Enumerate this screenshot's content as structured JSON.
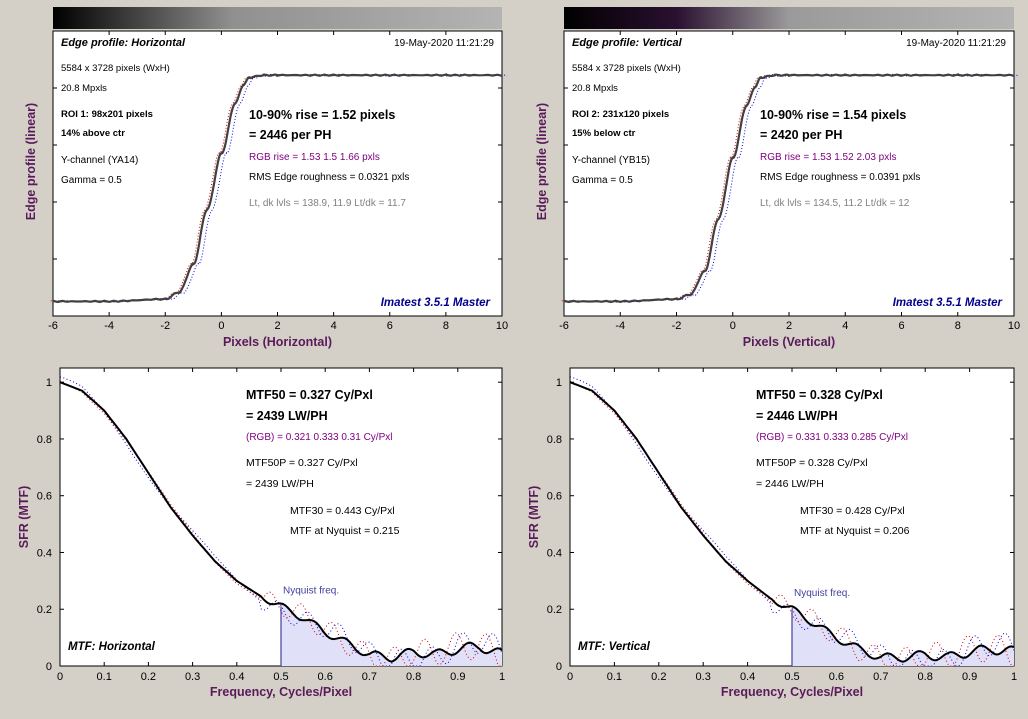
{
  "colors": {
    "background": "#d4d0c8",
    "axis_label": "#5a1a5a",
    "rgb_text": "#800080",
    "imatest": "#00008b",
    "nyquist": "#4040a0",
    "nyquist_fill": "#e0e0f8",
    "curve": "#000000",
    "edge_curve": "#404040",
    "red_dots": "#d00000",
    "blue_dots": "#0000e0"
  },
  "panels": [
    {
      "id": "edge-h",
      "heading": "Edge profile: Horizontal",
      "timestamp": "19-May-2020 11:21:29",
      "dims": "5584 x 3728 pixels (WxH)",
      "mpxls": "20.8 Mpxls",
      "roi": "ROI 1:  98x201 pixels",
      "roi_pos": "14% above ctr",
      "channel": "Y-channel  (YA14)",
      "gamma": "Gamma = 0.5",
      "rise": "10-90% rise = 1.52 pixels",
      "per_ph": "= 2446 per PH",
      "rgb_rise": "RGB rise = 1.53  1.5  1.66 pxls",
      "roughness": "RMS Edge roughness = 0.0321 pxls",
      "levels": "Lt, dk lvls = 138.9, 11.9   Lt/dk = 11.7",
      "brand": "Imatest 3.5.1 Master",
      "xlabel": "Pixels (Horizontal)",
      "ylabel": "Edge profile (linear)"
    },
    {
      "id": "edge-v",
      "heading": "Edge profile: Vertical",
      "timestamp": "19-May-2020 11:21:29",
      "dims": "5584 x 3728 pixels (WxH)",
      "mpxls": "20.8 Mpxls",
      "roi": "ROI 2:  231x120 pixels",
      "roi_pos": "15% below ctr",
      "channel": "Y-channel  (YB15)",
      "gamma": "Gamma = 0.5",
      "rise": "10-90% rise = 1.54 pixels",
      "per_ph": "= 2420 per PH",
      "rgb_rise": "RGB rise = 1.53  1.52  2.03 pxls",
      "roughness": "RMS Edge roughness = 0.0391 pxls",
      "levels": "Lt, dk lvls = 134.5, 11.2   Lt/dk = 12",
      "brand": "Imatest 3.5.1 Master",
      "xlabel": "Pixels (Vertical)",
      "ylabel": "Edge profile (linear)"
    },
    {
      "id": "mtf-h",
      "mtf50": "MTF50 = 0.327 Cy/Pxl",
      "lwph": "= 2439 LW/PH",
      "rgb": "(RGB) = 0.321  0.333  0.31 Cy/Pxl",
      "mtf50p": "MTF50P = 0.327 Cy/Pxl",
      "lwph2": "= 2439 LW/PH",
      "mtf30": "MTF30 = 0.443 Cy/Pxl",
      "nyq": "MTF at Nyquist = 0.215",
      "nyq_label": "Nyquist freq.",
      "name": "MTF: Horizontal",
      "xlabel": "Frequency, Cycles/Pixel",
      "ylabel": "SFR (MTF)"
    },
    {
      "id": "mtf-v",
      "mtf50": "MTF50 = 0.328 Cy/Pxl",
      "lwph": "= 2446 LW/PH",
      "rgb": "(RGB) = 0.331  0.333  0.285 Cy/Pxl",
      "mtf50p": "MTF50P = 0.328 Cy/Pxl",
      "lwph2": "= 2446 LW/PH",
      "mtf30": "MTF30 = 0.428 Cy/Pxl",
      "nyq": "MTF at Nyquist = 0.206",
      "nyq_label": "Nyquist freq.",
      "name": "MTF: Vertical",
      "xlabel": "Frequency, Cycles/Pixel",
      "ylabel": "SFR (MTF)"
    }
  ],
  "chart_data": [
    {
      "type": "line",
      "title": "Edge profile: Horizontal",
      "xlabel": "Pixels (Horizontal)",
      "ylabel": "Edge profile (linear)",
      "xlim": [
        -6,
        10
      ],
      "x_ticks": [
        "-6",
        "-4",
        "-2",
        "0",
        "2",
        "4",
        "6",
        "8",
        "10"
      ],
      "grid": false,
      "series": [
        {
          "x": [
            -6,
            -4,
            -2,
            -1.5,
            -1,
            -0.5,
            0,
            0.5,
            0.8,
            1,
            1.5,
            2,
            4,
            6,
            8,
            10
          ],
          "y": [
            0.02,
            0.02,
            0.03,
            0.06,
            0.18,
            0.42,
            0.66,
            0.88,
            0.96,
            0.99,
            1.0,
            1.0,
            1.0,
            1.0,
            1.0,
            1.0
          ]
        }
      ]
    },
    {
      "type": "line",
      "title": "Edge profile: Vertical",
      "xlabel": "Pixels (Vertical)",
      "ylabel": "Edge profile (linear)",
      "xlim": [
        -6,
        10
      ],
      "x_ticks": [
        "-6",
        "-4",
        "-2",
        "0",
        "2",
        "4",
        "6",
        "8",
        "10"
      ],
      "grid": false,
      "series": [
        {
          "x": [
            -6,
            -4,
            -2,
            -1.5,
            -1,
            -0.5,
            0,
            0.5,
            0.8,
            1,
            1.5,
            2,
            4,
            6,
            8,
            10
          ],
          "y": [
            0.02,
            0.02,
            0.03,
            0.05,
            0.15,
            0.38,
            0.64,
            0.87,
            0.95,
            0.99,
            1.0,
            1.0,
            1.0,
            1.0,
            1.0,
            1.0
          ]
        }
      ]
    },
    {
      "type": "line",
      "title": "MTF: Horizontal",
      "xlabel": "Frequency, Cycles/Pixel",
      "ylabel": "SFR (MTF)",
      "xlim": [
        0,
        1
      ],
      "ylim": [
        0,
        1.05
      ],
      "x_ticks": [
        "0",
        "0.1",
        "0.2",
        "0.3",
        "0.4",
        "0.5",
        "0.6",
        "0.7",
        "0.8",
        "0.9",
        "1"
      ],
      "y_ticks": [
        "0",
        "0.2",
        "0.4",
        "0.6",
        "0.8",
        "1"
      ],
      "nyquist": 0.5,
      "series": [
        {
          "x": [
            0,
            0.05,
            0.1,
            0.15,
            0.2,
            0.25,
            0.3,
            0.35,
            0.4,
            0.45,
            0.5,
            0.55,
            0.6,
            0.65,
            0.7,
            0.75,
            0.8,
            0.85,
            0.9,
            0.95,
            1.0
          ],
          "y": [
            1.0,
            0.97,
            0.9,
            0.8,
            0.68,
            0.56,
            0.46,
            0.37,
            0.3,
            0.25,
            0.21,
            0.17,
            0.12,
            0.08,
            0.04,
            0.03,
            0.05,
            0.04,
            0.06,
            0.07,
            0.04
          ]
        }
      ]
    },
    {
      "type": "line",
      "title": "MTF: Vertical",
      "xlabel": "Frequency, Cycles/Pixel",
      "ylabel": "SFR (MTF)",
      "xlim": [
        0,
        1
      ],
      "ylim": [
        0,
        1.05
      ],
      "x_ticks": [
        "0",
        "0.1",
        "0.2",
        "0.3",
        "0.4",
        "0.5",
        "0.6",
        "0.7",
        "0.8",
        "0.9",
        "1"
      ],
      "y_ticks": [
        "0",
        "0.2",
        "0.4",
        "0.6",
        "0.8",
        "1"
      ],
      "nyquist": 0.5,
      "series": [
        {
          "x": [
            0,
            0.05,
            0.1,
            0.15,
            0.2,
            0.25,
            0.3,
            0.35,
            0.4,
            0.45,
            0.5,
            0.55,
            0.6,
            0.65,
            0.7,
            0.75,
            0.8,
            0.85,
            0.9,
            0.95,
            1.0
          ],
          "y": [
            1.0,
            0.97,
            0.9,
            0.8,
            0.68,
            0.56,
            0.46,
            0.37,
            0.3,
            0.24,
            0.2,
            0.15,
            0.1,
            0.06,
            0.03,
            0.03,
            0.04,
            0.03,
            0.05,
            0.06,
            0.05
          ]
        }
      ]
    }
  ]
}
